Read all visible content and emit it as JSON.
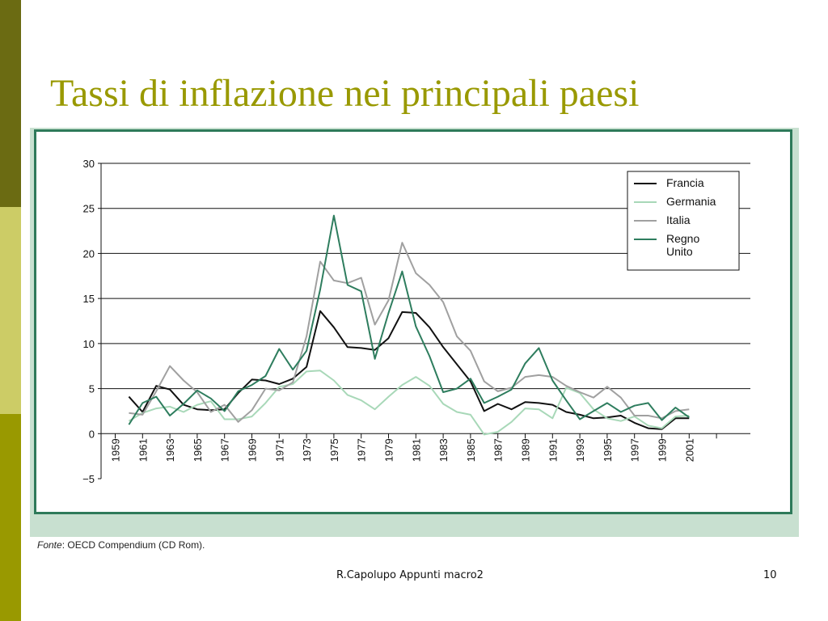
{
  "slide": {
    "title": "Tassi di inflazione nei principali paesi",
    "source_label": "Fonte",
    "source_text": ": OECD Compendium (CD Rom).",
    "footer": "R.Capolupo Appunti macro2",
    "page_number": "10"
  },
  "chart_data": {
    "type": "line",
    "title": "",
    "xlabel": "",
    "ylabel": "",
    "ylim": [
      -5,
      30
    ],
    "yticks": [
      -5,
      0,
      5,
      10,
      15,
      20,
      25,
      30
    ],
    "xlim": [
      1959,
      2004
    ],
    "xticks": [
      "1959",
      "1961",
      "1963",
      "1965",
      "1967",
      "1969",
      "1971",
      "1973",
      "1975",
      "1977",
      "1979",
      "1981",
      "1983",
      "1985",
      "1987",
      "1989",
      "1991",
      "1993",
      "1995",
      "1997",
      "1999",
      "2001"
    ],
    "grid": "horizontal",
    "legend_position": "top-right",
    "x": [
      1960,
      1961,
      1962,
      1963,
      1964,
      1965,
      1966,
      1967,
      1968,
      1969,
      1970,
      1971,
      1972,
      1973,
      1974,
      1975,
      1976,
      1977,
      1978,
      1979,
      1980,
      1981,
      1982,
      1983,
      1984,
      1985,
      1986,
      1987,
      1988,
      1989,
      1990,
      1991,
      1992,
      1993,
      1994,
      1995,
      1996,
      1997,
      1998,
      1999,
      2000,
      2001
    ],
    "series": [
      {
        "name": "Francia",
        "color": "#111111",
        "values": [
          4.1,
          2.4,
          5.3,
          4.9,
          3.2,
          2.7,
          2.6,
          2.7,
          4.5,
          6.0,
          5.9,
          5.5,
          6.1,
          7.4,
          13.6,
          11.8,
          9.6,
          9.5,
          9.3,
          10.6,
          13.5,
          13.4,
          11.8,
          9.6,
          7.7,
          5.8,
          2.5,
          3.3,
          2.7,
          3.5,
          3.4,
          3.2,
          2.4,
          2.1,
          1.7,
          1.8,
          2.0,
          1.2,
          0.6,
          0.5,
          1.7,
          1.7
        ]
      },
      {
        "name": "Germania",
        "color": "#a8d8b8",
        "values": [
          1.4,
          2.3,
          2.8,
          3.0,
          2.4,
          3.2,
          3.6,
          1.6,
          1.6,
          1.9,
          3.4,
          5.2,
          5.5,
          6.9,
          7.0,
          5.9,
          4.3,
          3.7,
          2.7,
          4.1,
          5.4,
          6.3,
          5.3,
          3.3,
          2.4,
          2.1,
          -0.1,
          0.2,
          1.3,
          2.8,
          2.7,
          1.7,
          5.1,
          4.5,
          2.7,
          1.7,
          1.4,
          1.9,
          0.9,
          0.6,
          1.9,
          2.0
        ]
      },
      {
        "name": "Italia",
        "color": "#a0a0a0",
        "values": [
          2.3,
          2.1,
          4.7,
          7.5,
          5.9,
          4.6,
          2.4,
          3.2,
          1.3,
          2.6,
          5.0,
          4.8,
          5.7,
          10.8,
          19.1,
          17.0,
          16.7,
          17.3,
          12.1,
          14.8,
          21.2,
          17.8,
          16.5,
          14.6,
          10.8,
          9.2,
          5.8,
          4.7,
          5.1,
          6.3,
          6.5,
          6.3,
          5.3,
          4.6,
          4.0,
          5.2,
          4.0,
          2.0,
          2.0,
          1.7,
          2.5,
          2.7
        ]
      },
      {
        "name": "Regno Unito",
        "label_lines": [
          "Regno",
          "Unito"
        ],
        "color": "#2e7d5e",
        "values": [
          1.0,
          3.4,
          4.1,
          2.0,
          3.3,
          4.8,
          3.9,
          2.5,
          4.7,
          5.4,
          6.4,
          9.4,
          7.1,
          9.2,
          16.0,
          24.2,
          16.5,
          15.8,
          8.3,
          13.4,
          18.0,
          11.9,
          8.6,
          4.6,
          5.0,
          6.1,
          3.4,
          4.1,
          4.9,
          7.8,
          9.5,
          5.9,
          3.7,
          1.6,
          2.5,
          3.4,
          2.4,
          3.1,
          3.4,
          1.5,
          2.9,
          1.8
        ]
      }
    ]
  }
}
